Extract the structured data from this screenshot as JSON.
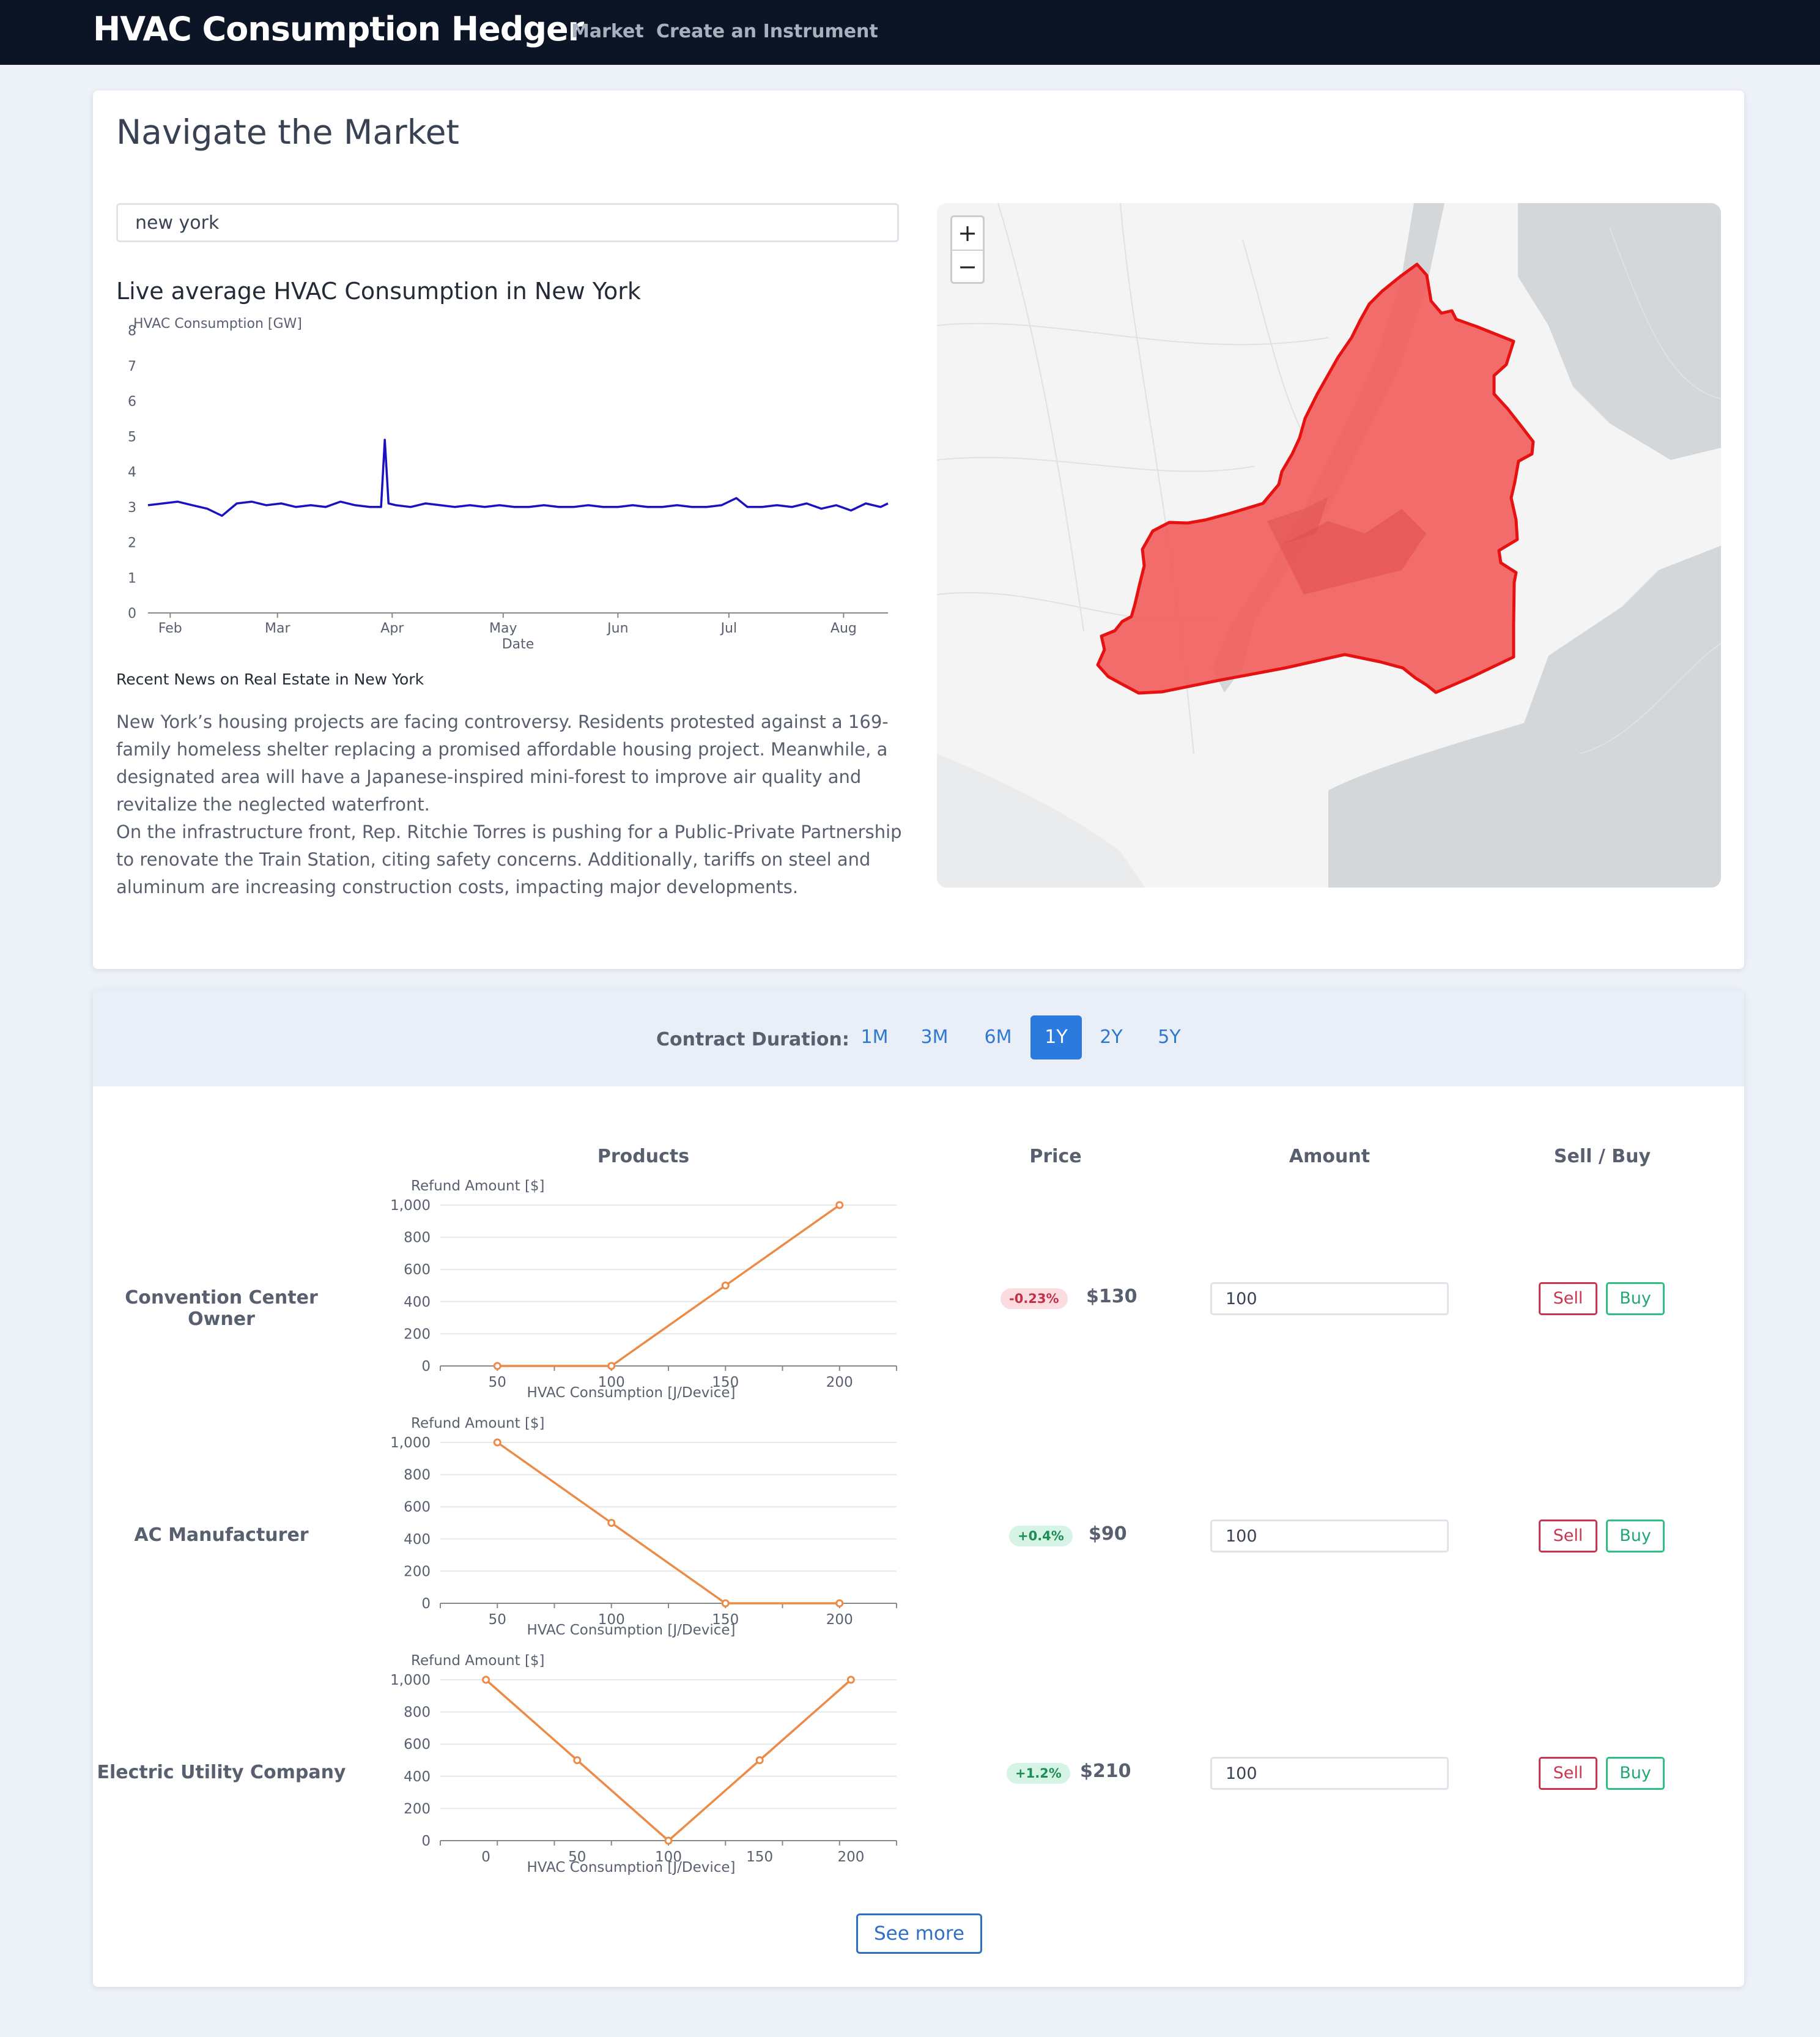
{
  "nav": {
    "brand": "HVAC Consumption Hedger",
    "links": [
      "Market",
      "Create an Instrument"
    ]
  },
  "market": {
    "title": "Navigate the Market",
    "search_value": "new york",
    "chart_title": "Live average HVAC Consumption in New York",
    "news_heading": "Recent News on Real Estate in New York",
    "news_paragraphs": [
      "New York’s housing projects are facing controversy. Residents protested against a 169-family homeless shelter replacing a promised affordable housing project. Meanwhile, a designated area will have a Japanese-inspired mini-forest to improve air quality and revitalize the neglected waterfront.",
      "On the infrastructure front, Rep. Ritchie Torres is pushing for a Public-Private Partnership to renovate the Train Station, citing safety concerns. Additionally, tariffs on steel and aluminum are increasing construction costs, impacting major developments."
    ],
    "zoom_in": "+",
    "zoom_out": "−",
    "region_color": "#f25f5f"
  },
  "contracts": {
    "duration_label": "Contract Duration:",
    "durations": [
      "1M",
      "3M",
      "6M",
      "1Y",
      "2Y",
      "5Y"
    ],
    "active_duration": "1Y",
    "headers": {
      "products": "Products",
      "price": "Price",
      "amount": "Amount",
      "sell_buy": "Sell / Buy"
    },
    "sell_label": "Sell",
    "buy_label": "Buy",
    "see_more": "See more",
    "rows": [
      {
        "name": "Convention Center Owner",
        "change": "-0.23%",
        "trend": "neg",
        "price": "$130",
        "amount": "100"
      },
      {
        "name": "AC Manufacturer",
        "change": "+0.4%",
        "trend": "pos",
        "price": "$90",
        "amount": "100"
      },
      {
        "name": "Electric Utility Company",
        "change": "+1.2%",
        "trend": "pos",
        "price": "$210",
        "amount": "100"
      }
    ]
  },
  "chart_data": [
    {
      "type": "line",
      "title": "Live average HVAC Consumption in New York",
      "ylabel": "HVAC Consumption [GW]",
      "xlabel": "Date",
      "x_ticks": [
        "Feb",
        "Mar",
        "Apr",
        "May",
        "Jun",
        "Jul",
        "Aug"
      ],
      "y_ticks": [
        0,
        1,
        2,
        3,
        4,
        5,
        6,
        7,
        8
      ],
      "ylim": [
        0,
        8
      ],
      "xlim": [
        "2024-01-26",
        "2024-08-13"
      ],
      "color": "#1a12c2",
      "series": [
        {
          "x": [
            "2024-01-26",
            "2024-01-30",
            "2024-02-03",
            "2024-02-07",
            "2024-02-11",
            "2024-02-15",
            "2024-02-19",
            "2024-02-23",
            "2024-02-27",
            "2024-03-02",
            "2024-03-06",
            "2024-03-10",
            "2024-03-14",
            "2024-03-18",
            "2024-03-22",
            "2024-03-26",
            "2024-03-29",
            "2024-03-30",
            "2024-03-31",
            "2024-04-02",
            "2024-04-06",
            "2024-04-10",
            "2024-04-14",
            "2024-04-18",
            "2024-04-22",
            "2024-04-26",
            "2024-04-30",
            "2024-05-04",
            "2024-05-08",
            "2024-05-12",
            "2024-05-16",
            "2024-05-20",
            "2024-05-24",
            "2024-05-28",
            "2024-06-01",
            "2024-06-05",
            "2024-06-09",
            "2024-06-13",
            "2024-06-17",
            "2024-06-21",
            "2024-06-25",
            "2024-06-29",
            "2024-07-03",
            "2024-07-06",
            "2024-07-10",
            "2024-07-14",
            "2024-07-18",
            "2024-07-22",
            "2024-07-26",
            "2024-07-30",
            "2024-08-03",
            "2024-08-07",
            "2024-08-11",
            "2024-08-13"
          ],
          "y": [
            3.05,
            3.1,
            3.15,
            3.05,
            2.95,
            2.75,
            3.1,
            3.15,
            3.05,
            3.1,
            3.0,
            3.05,
            3.0,
            3.15,
            3.05,
            3.0,
            3.0,
            4.9,
            3.1,
            3.05,
            3.0,
            3.1,
            3.05,
            3.0,
            3.05,
            3.0,
            3.05,
            3.0,
            3.0,
            3.05,
            3.0,
            3.0,
            3.05,
            3.0,
            3.0,
            3.05,
            3.0,
            3.0,
            3.05,
            3.0,
            3.0,
            3.05,
            3.25,
            3.0,
            3.0,
            3.05,
            3.0,
            3.1,
            2.95,
            3.05,
            2.9,
            3.1,
            3.0,
            3.1
          ]
        }
      ]
    },
    {
      "type": "line",
      "xlabel": "HVAC Consumption [J/Device]",
      "ylabel": "Refund Amount [$]",
      "x_ticks": [
        50,
        100,
        150,
        200
      ],
      "y_ticks": [
        0,
        200,
        400,
        600,
        800,
        1000
      ],
      "xlim": [
        25,
        225
      ],
      "ylim": [
        0,
        1000
      ],
      "color": "#ec8a46",
      "series": [
        {
          "x": [
            50,
            100,
            150,
            200
          ],
          "y": [
            0,
            0,
            500,
            1000
          ]
        }
      ]
    },
    {
      "type": "line",
      "xlabel": "HVAC Consumption [J/Device]",
      "ylabel": "Refund Amount [$]",
      "x_ticks": [
        50,
        100,
        150,
        200
      ],
      "y_ticks": [
        0,
        200,
        400,
        600,
        800,
        1000
      ],
      "xlim": [
        25,
        225
      ],
      "ylim": [
        0,
        1000
      ],
      "color": "#ec8a46",
      "series": [
        {
          "x": [
            50,
            100,
            150,
            200
          ],
          "y": [
            1000,
            500,
            0,
            0
          ]
        }
      ]
    },
    {
      "type": "line",
      "xlabel": "HVAC Consumption [J/Device]",
      "ylabel": "Refund Amount [$]",
      "x_ticks": [
        0,
        50,
        100,
        150,
        200
      ],
      "y_ticks": [
        0,
        200,
        400,
        600,
        800,
        1000
      ],
      "xlim": [
        -25,
        225
      ],
      "ylim": [
        0,
        1000
      ],
      "color": "#ec8a46",
      "series": [
        {
          "x": [
            0,
            50,
            100,
            150,
            200
          ],
          "y": [
            1000,
            500,
            0,
            500,
            1000
          ]
        }
      ]
    }
  ]
}
